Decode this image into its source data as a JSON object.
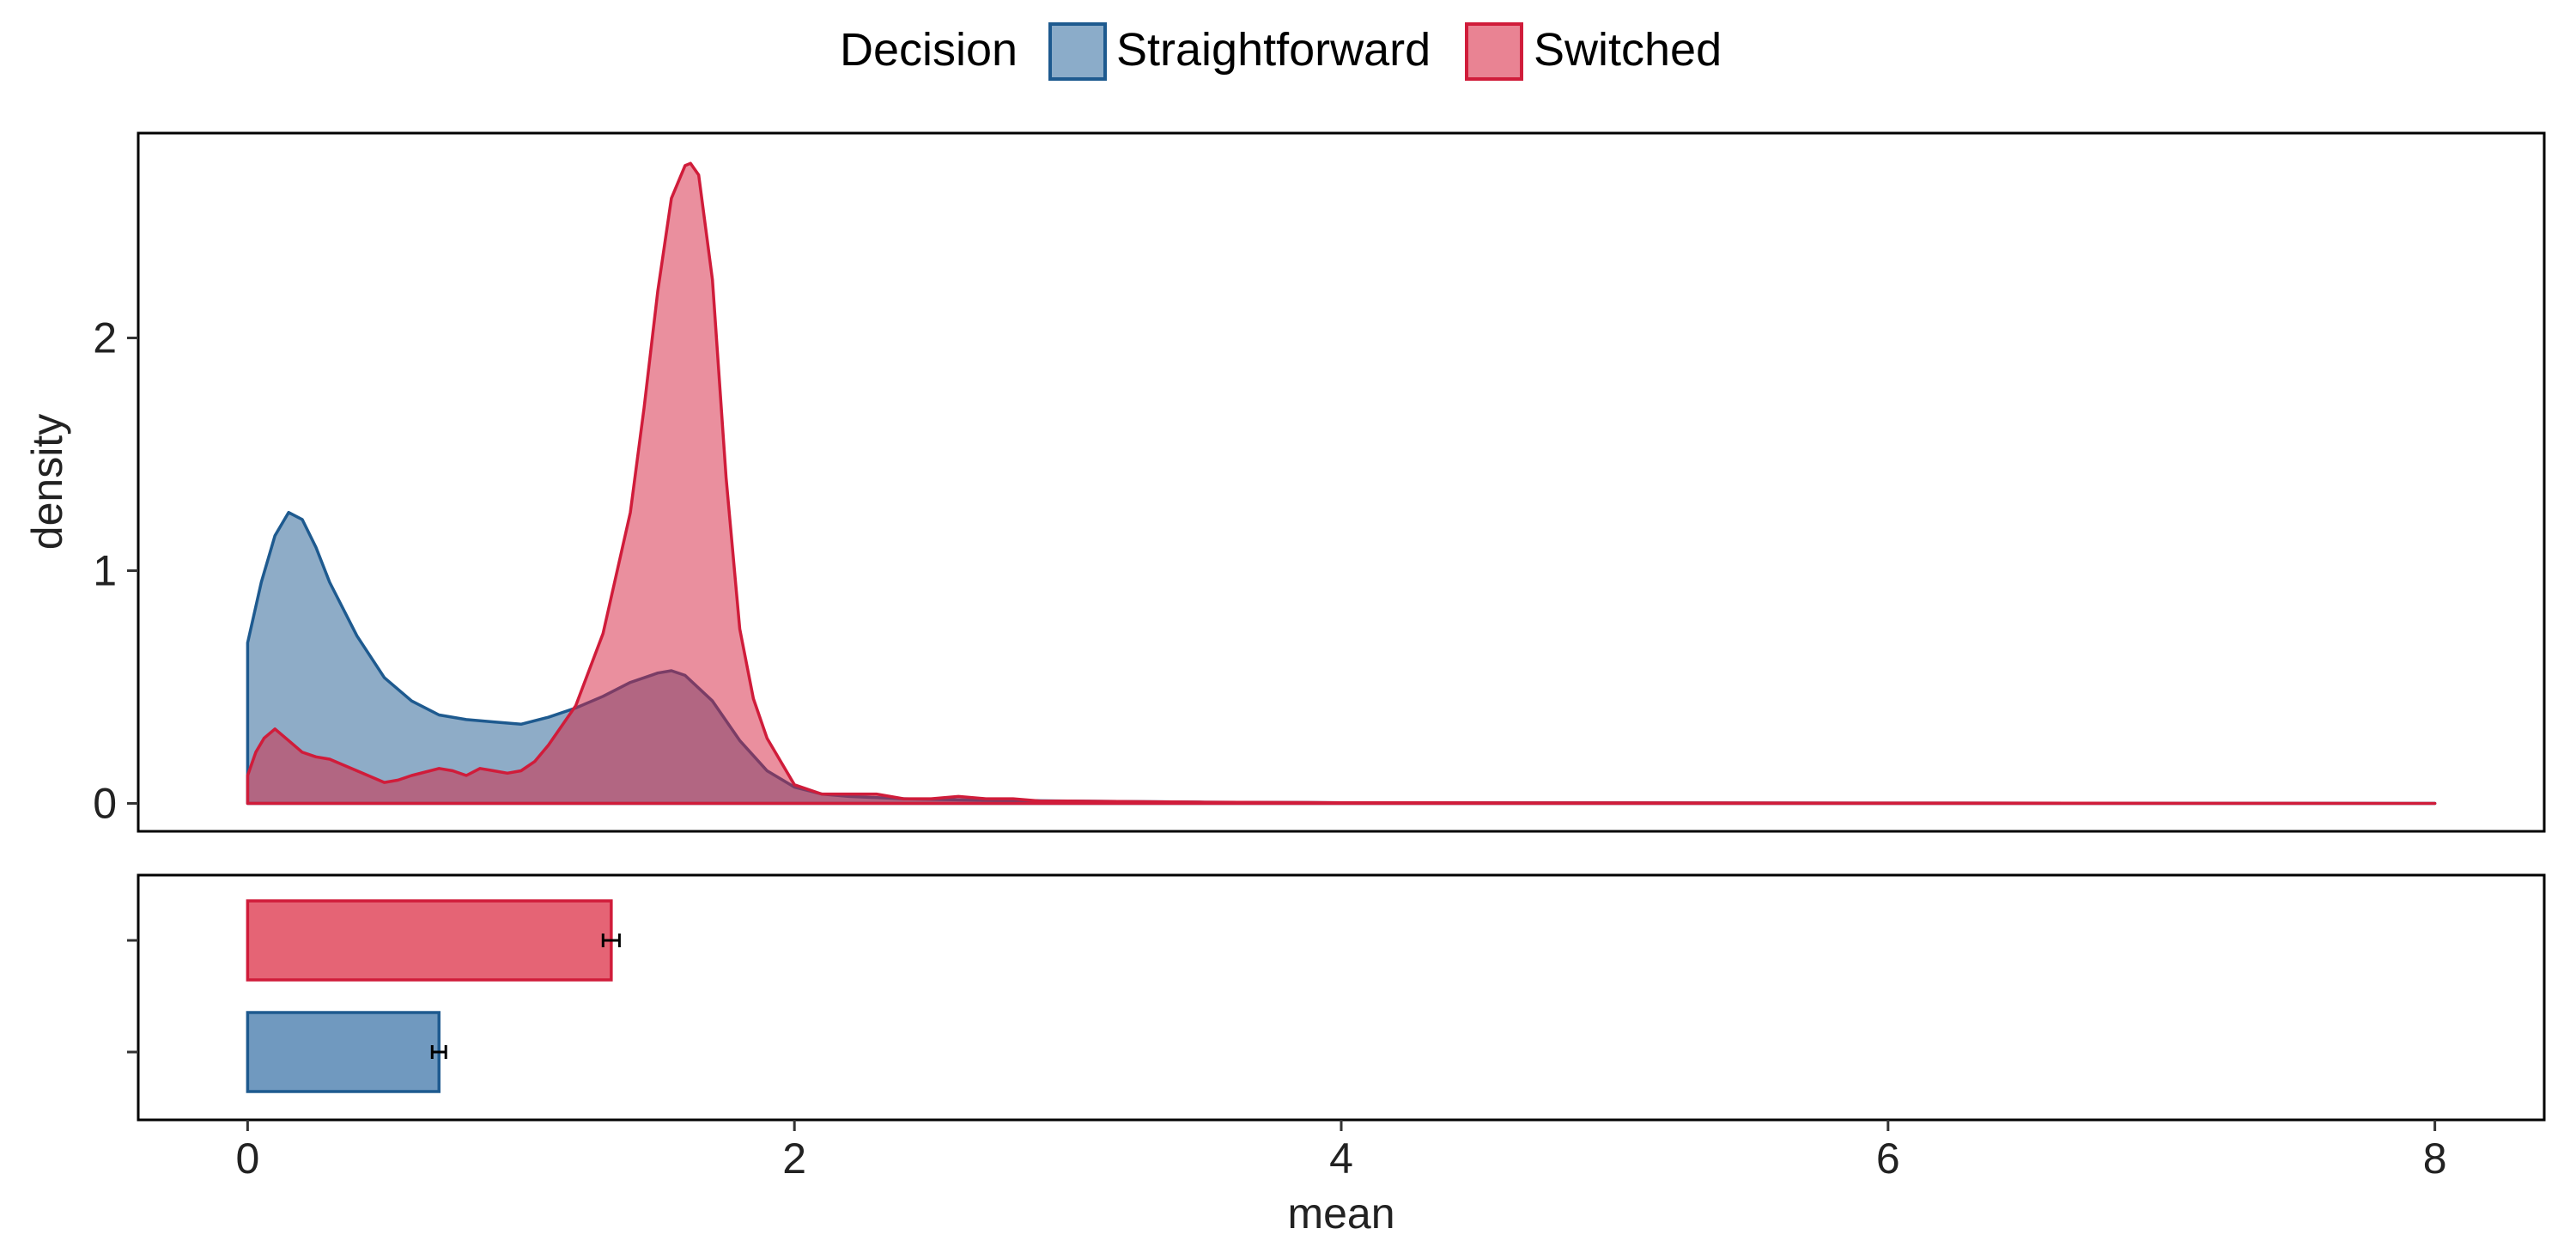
{
  "legend": {
    "title": "Decision",
    "items": [
      {
        "label": "Straightforward",
        "fill": "#8BACC9",
        "stroke": "#1E5A8F"
      },
      {
        "label": "Switched",
        "fill": "#E98393",
        "stroke": "#D01C3A"
      }
    ]
  },
  "colors": {
    "straightforward_fill": "#1E5A8F",
    "straightforward_stroke": "#1E5A8F",
    "switched_fill": "#D61F3D",
    "switched_stroke": "#D01C3A",
    "bar_straightforward": "#7099BF",
    "bar_switched": "#E56475"
  },
  "chart_data": [
    {
      "type": "area",
      "title": "",
      "xlabel": "",
      "ylabel": "density",
      "xlim": [
        -0.4,
        8.4
      ],
      "ylim": [
        -0.12,
        2.88
      ],
      "yticks": [
        0,
        1,
        2
      ],
      "ytick_labels": [
        "0",
        "1",
        "2"
      ],
      "series": [
        {
          "name": "Straightforward",
          "x": [
            0.0,
            0.05,
            0.1,
            0.15,
            0.2,
            0.25,
            0.3,
            0.4,
            0.5,
            0.6,
            0.7,
            0.8,
            0.9,
            1.0,
            1.1,
            1.2,
            1.3,
            1.4,
            1.5,
            1.55,
            1.6,
            1.7,
            1.8,
            1.9,
            2.0,
            2.1,
            2.2,
            2.4,
            2.6,
            3.0,
            3.5,
            4.0,
            8.0
          ],
          "y": [
            0.69,
            0.95,
            1.15,
            1.25,
            1.22,
            1.1,
            0.95,
            0.72,
            0.54,
            0.44,
            0.38,
            0.36,
            0.35,
            0.34,
            0.37,
            0.41,
            0.46,
            0.52,
            0.56,
            0.57,
            0.55,
            0.44,
            0.27,
            0.14,
            0.07,
            0.04,
            0.03,
            0.02,
            0.015,
            0.01,
            0.005,
            0.003,
            0.0
          ]
        },
        {
          "name": "Switched",
          "x": [
            0.0,
            0.03,
            0.06,
            0.1,
            0.15,
            0.2,
            0.25,
            0.3,
            0.4,
            0.5,
            0.55,
            0.6,
            0.7,
            0.75,
            0.8,
            0.85,
            0.9,
            0.95,
            1.0,
            1.05,
            1.1,
            1.2,
            1.3,
            1.4,
            1.45,
            1.5,
            1.55,
            1.6,
            1.62,
            1.65,
            1.7,
            1.75,
            1.8,
            1.85,
            1.9,
            2.0,
            2.1,
            2.2,
            2.3,
            2.4,
            2.5,
            2.6,
            2.7,
            2.8,
            2.9,
            3.0,
            3.5,
            4.0,
            8.0
          ],
          "y": [
            0.12,
            0.22,
            0.28,
            0.32,
            0.27,
            0.22,
            0.2,
            0.19,
            0.14,
            0.09,
            0.1,
            0.12,
            0.15,
            0.14,
            0.12,
            0.15,
            0.14,
            0.13,
            0.14,
            0.18,
            0.25,
            0.42,
            0.73,
            1.25,
            1.7,
            2.2,
            2.6,
            2.74,
            2.75,
            2.7,
            2.25,
            1.4,
            0.75,
            0.45,
            0.28,
            0.08,
            0.04,
            0.04,
            0.04,
            0.02,
            0.02,
            0.03,
            0.02,
            0.02,
            0.01,
            0.01,
            0.005,
            0.003,
            0.0
          ]
        }
      ]
    },
    {
      "type": "bar",
      "orientation": "horizontal",
      "xlabel": "mean",
      "ylabel": "",
      "xlim": [
        -0.4,
        8.4
      ],
      "xticks": [
        0,
        2,
        4,
        6,
        8
      ],
      "xtick_labels": [
        "0",
        "2",
        "4",
        "6",
        "8"
      ],
      "categories": [
        "Switched",
        "Straightforward"
      ],
      "values": [
        1.33,
        0.7
      ],
      "error": [
        0.03,
        0.025
      ]
    }
  ]
}
